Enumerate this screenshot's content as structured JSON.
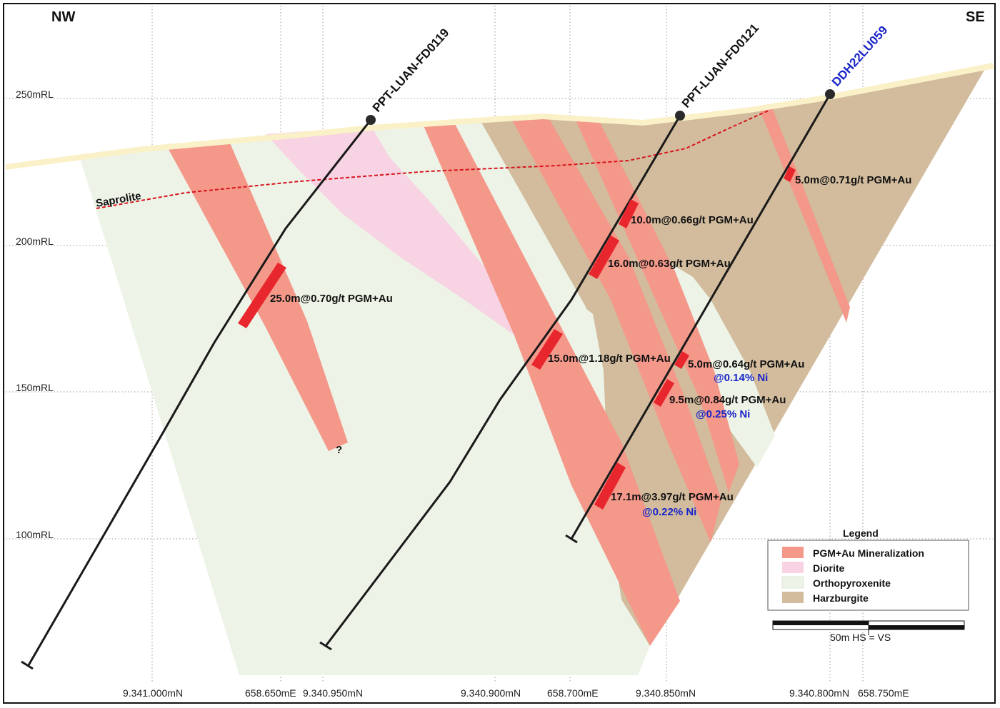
{
  "corners": {
    "left": "NW",
    "right": "SE"
  },
  "elevations": [
    "250mRL",
    "200mRL",
    "150mRL",
    "100mRL"
  ],
  "coordinates": [
    "9.341.000mN",
    "658.650mE",
    "9.340.950mN",
    "9.340.900mN",
    "658.700mE",
    "9.340.850mN",
    "9.340.800mN",
    "658.750mE"
  ],
  "saprolite_label": "Saprolite",
  "drill_holes": [
    {
      "name": "PPT-LUAN-FD0119",
      "color": "#111111"
    },
    {
      "name": "PPT-LUAN-FD0121",
      "color": "#111111"
    },
    {
      "name": "DDH22LU059",
      "color": "#1a24c8"
    }
  ],
  "intercepts": [
    {
      "text": "25.0m@0.70g/t PGM+Au"
    },
    {
      "text": "10.0m@0.66g/t PGM+Au"
    },
    {
      "text": "16.0m@0.63g/t PGM+Au"
    },
    {
      "text": "15.0m@1.18g/t PGM+Au"
    },
    {
      "text": "5.0m@0.71g/t PGM+Au"
    },
    {
      "text": "5.0m@0.64g/t PGM+Au",
      "ni": "@0.14% Ni"
    },
    {
      "text": "9.5m@0.84g/t PGM+Au",
      "ni": "@0.25% Ni"
    },
    {
      "text": "17.1m@3.97g/t PGM+Au",
      "ni": "@0.22% Ni"
    }
  ],
  "question_mark": "?",
  "legend": {
    "title": "Legend",
    "items": [
      {
        "label": "PGM+Au Mineralization",
        "color": "#f4988a"
      },
      {
        "label": "Diorite",
        "color": "#f7d3e3"
      },
      {
        "label": "Orthopyroxenite",
        "color": "#edf4e7"
      },
      {
        "label": "Harzburgite",
        "color": "#d2bc9d"
      }
    ]
  },
  "scale": {
    "label": "50m  HS = VS"
  },
  "colors": {
    "mineralization": "#f4988a",
    "diorite": "#f7d3e3",
    "orthopyroxenite": "#edf4e7",
    "harzburgite": "#d2bc9d",
    "surface": "#fbf1c8",
    "saprolite_line": "#d8141c",
    "intercept_mark": "#e8262d",
    "nickel_text": "#1a24c8"
  }
}
